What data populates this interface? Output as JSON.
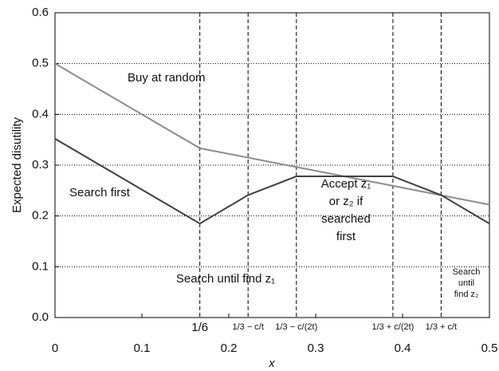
{
  "chart_data": {
    "type": "line",
    "x_label": "x",
    "y_label": "Expected disutility",
    "x": [
      0,
      0.1667,
      0.2222,
      0.2778,
      0.3889,
      0.4444,
      0.5
    ],
    "series": [
      {
        "name": "Buy at random",
        "color": "#8c8c8c",
        "values": [
          0.5,
          0.3333,
          0.3148,
          0.2963,
          0.2593,
          0.2407,
          0.2222
        ]
      },
      {
        "name": "Search first",
        "color": "#404040",
        "values": [
          0.352,
          0.185,
          0.241,
          0.278,
          0.278,
          0.241,
          0.185
        ]
      }
    ],
    "xlim": [
      0,
      0.5
    ],
    "ylim": [
      0,
      0.6
    ],
    "xticks": [
      0,
      0.1,
      0.2,
      0.3,
      0.4,
      0.5
    ],
    "yticks": [
      {
        "value": 0,
        "label": "0.0"
      },
      0.1,
      0.2,
      0.3,
      0.4,
      0.5,
      0.6
    ],
    "grid": true,
    "xmarkers": [
      {
        "value": 0.1667,
        "label": "1/6"
      },
      {
        "value": 0.2222,
        "label": "1/3 − c/t"
      },
      {
        "value": 0.2778,
        "label": "1/3 − c/(2t)"
      },
      {
        "value": 0.3889,
        "label": "1/3 + c/(2t)"
      },
      {
        "value": 0.4444,
        "label": "1/3 + c/t"
      }
    ],
    "annotations": [
      {
        "lines": [
          "Search until find z₁"
        ]
      },
      {
        "lines": [
          "Accept z₁",
          "or z₂ if",
          "searched",
          "first"
        ]
      },
      {
        "lines": [
          "Search",
          "until",
          "find z₂"
        ]
      }
    ]
  }
}
